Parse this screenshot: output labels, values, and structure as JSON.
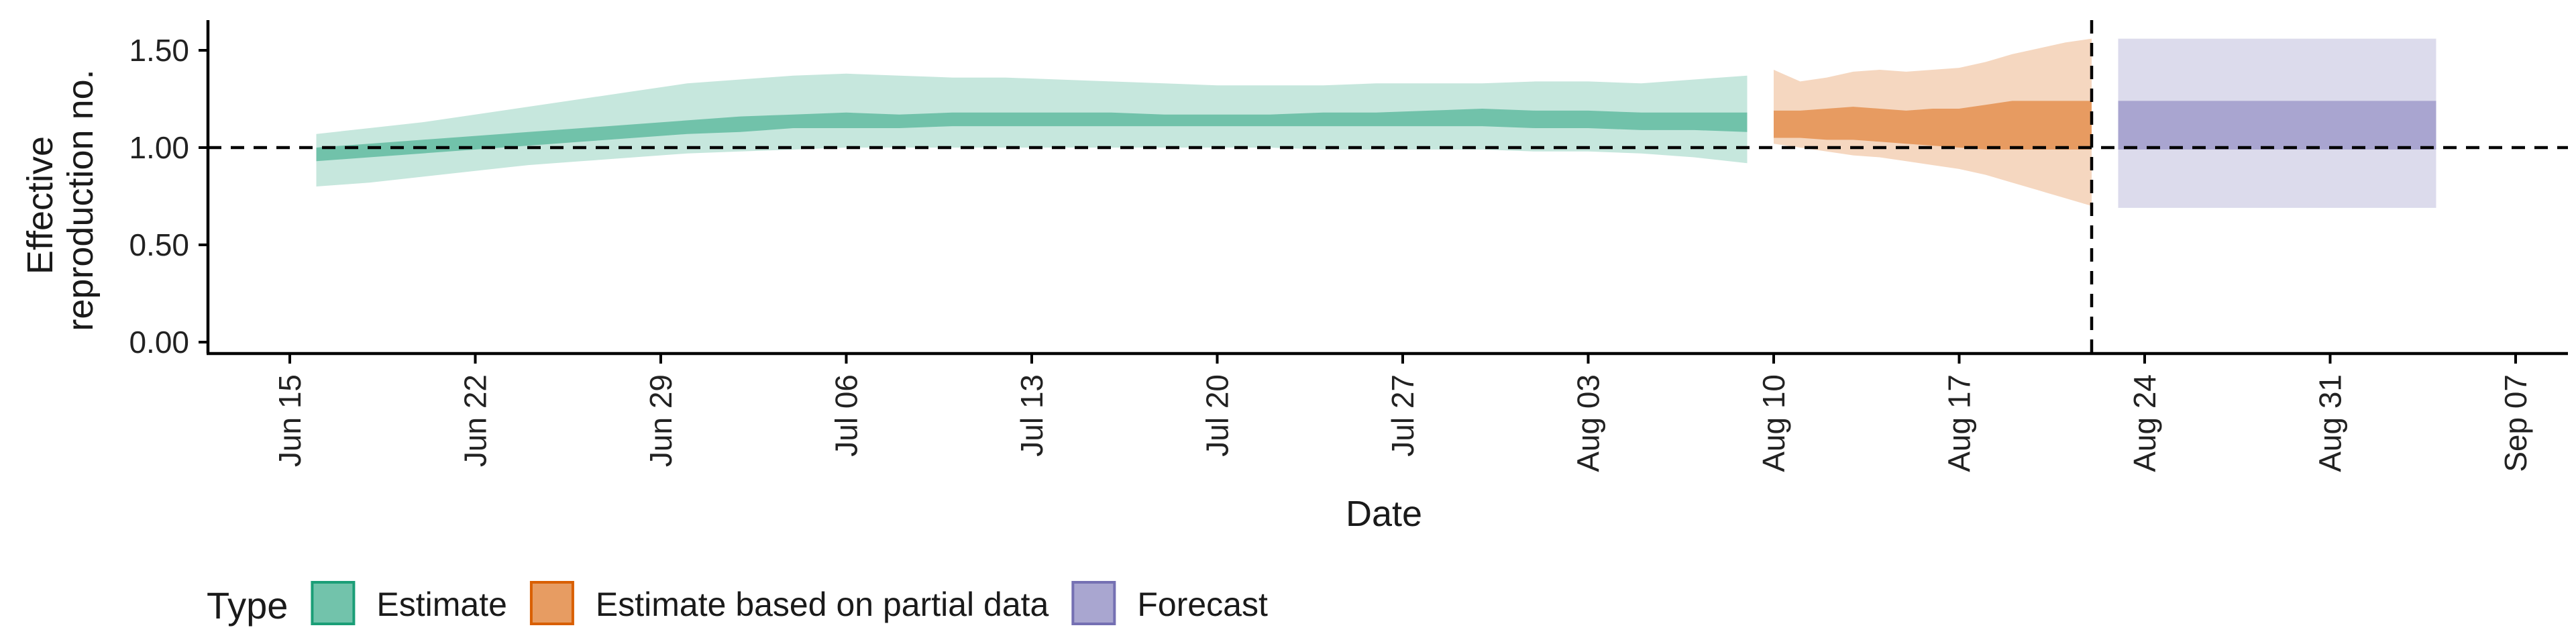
{
  "chart_data": {
    "type": "area",
    "xlabel": "Date",
    "ylabel": "Effective reproduction no.",
    "ylim": [
      0,
      1.6
    ],
    "y_ticks": [
      "0.00",
      "0.50",
      "1.00",
      "1.50"
    ],
    "x_ticks": [
      "Jun 15",
      "Jun 22",
      "Jun 29",
      "Jul 06",
      "Jul 13",
      "Jul 20",
      "Jul 27",
      "Aug 03",
      "Aug 10",
      "Aug 17",
      "Aug 24",
      "Aug 31",
      "Sep 07"
    ],
    "reference_hline": 1.0,
    "vline_date": "Aug 22",
    "legend": {
      "title": "Type",
      "position": "bottom",
      "entries": [
        "Estimate",
        "Estimate based on partial data",
        "Forecast"
      ]
    },
    "series": [
      {
        "name": "Estimate",
        "color": "#1b9e77",
        "dates": [
          "Jun 16",
          "Jun 18",
          "Jun 20",
          "Jun 22",
          "Jun 24",
          "Jun 26",
          "Jun 28",
          "Jun 30",
          "Jul 02",
          "Jul 04",
          "Jul 06",
          "Jul 08",
          "Jul 10",
          "Jul 12",
          "Jul 14",
          "Jul 16",
          "Jul 18",
          "Jul 20",
          "Jul 22",
          "Jul 24",
          "Jul 26",
          "Jul 28",
          "Jul 30",
          "Aug 01",
          "Aug 03",
          "Aug 05",
          "Aug 07",
          "Aug 09"
        ],
        "lower_90": [
          0.8,
          0.82,
          0.85,
          0.88,
          0.91,
          0.93,
          0.95,
          0.97,
          0.98,
          0.99,
          1.0,
          1.0,
          1.0,
          1.0,
          1.0,
          1.0,
          1.0,
          1.0,
          1.0,
          0.99,
          0.99,
          0.99,
          0.99,
          0.98,
          0.98,
          0.97,
          0.95,
          0.92
        ],
        "lower_50": [
          0.93,
          0.95,
          0.97,
          0.99,
          1.01,
          1.03,
          1.05,
          1.07,
          1.08,
          1.1,
          1.1,
          1.1,
          1.11,
          1.11,
          1.11,
          1.11,
          1.11,
          1.11,
          1.11,
          1.11,
          1.11,
          1.11,
          1.11,
          1.1,
          1.1,
          1.09,
          1.09,
          1.08
        ],
        "upper_50": [
          1.0,
          1.02,
          1.04,
          1.06,
          1.08,
          1.1,
          1.12,
          1.14,
          1.16,
          1.17,
          1.18,
          1.17,
          1.18,
          1.18,
          1.18,
          1.18,
          1.17,
          1.17,
          1.17,
          1.18,
          1.18,
          1.19,
          1.2,
          1.19,
          1.19,
          1.18,
          1.18,
          1.18
        ],
        "upper_90": [
          1.07,
          1.1,
          1.13,
          1.17,
          1.21,
          1.25,
          1.29,
          1.33,
          1.35,
          1.37,
          1.38,
          1.37,
          1.36,
          1.36,
          1.35,
          1.34,
          1.33,
          1.32,
          1.32,
          1.32,
          1.33,
          1.33,
          1.33,
          1.34,
          1.34,
          1.33,
          1.35,
          1.37
        ]
      },
      {
        "name": "Estimate based on partial data",
        "color": "#d95f02",
        "dates": [
          "Aug 10",
          "Aug 11",
          "Aug 12",
          "Aug 13",
          "Aug 14",
          "Aug 15",
          "Aug 16",
          "Aug 17",
          "Aug 18",
          "Aug 19",
          "Aug 20",
          "Aug 21",
          "Aug 22"
        ],
        "lower_90": [
          1.02,
          1.0,
          0.98,
          0.96,
          0.95,
          0.93,
          0.91,
          0.89,
          0.86,
          0.82,
          0.78,
          0.74,
          0.7
        ],
        "lower_50": [
          1.05,
          1.05,
          1.04,
          1.04,
          1.03,
          1.02,
          1.01,
          1.0,
          0.99,
          0.99,
          0.99,
          0.99,
          0.99
        ],
        "upper_50": [
          1.19,
          1.19,
          1.2,
          1.21,
          1.2,
          1.19,
          1.2,
          1.2,
          1.22,
          1.24,
          1.24,
          1.24,
          1.24
        ],
        "upper_90": [
          1.4,
          1.34,
          1.36,
          1.39,
          1.4,
          1.39,
          1.4,
          1.41,
          1.44,
          1.48,
          1.51,
          1.54,
          1.56
        ]
      },
      {
        "name": "Forecast",
        "color": "#7570b3",
        "dates": [
          "Aug 23",
          "Sep 04"
        ],
        "lower_90": [
          0.69,
          0.69
        ],
        "lower_50": [
          0.99,
          0.99
        ],
        "upper_50": [
          1.24,
          1.24
        ],
        "upper_90": [
          1.56,
          1.56
        ]
      }
    ]
  }
}
